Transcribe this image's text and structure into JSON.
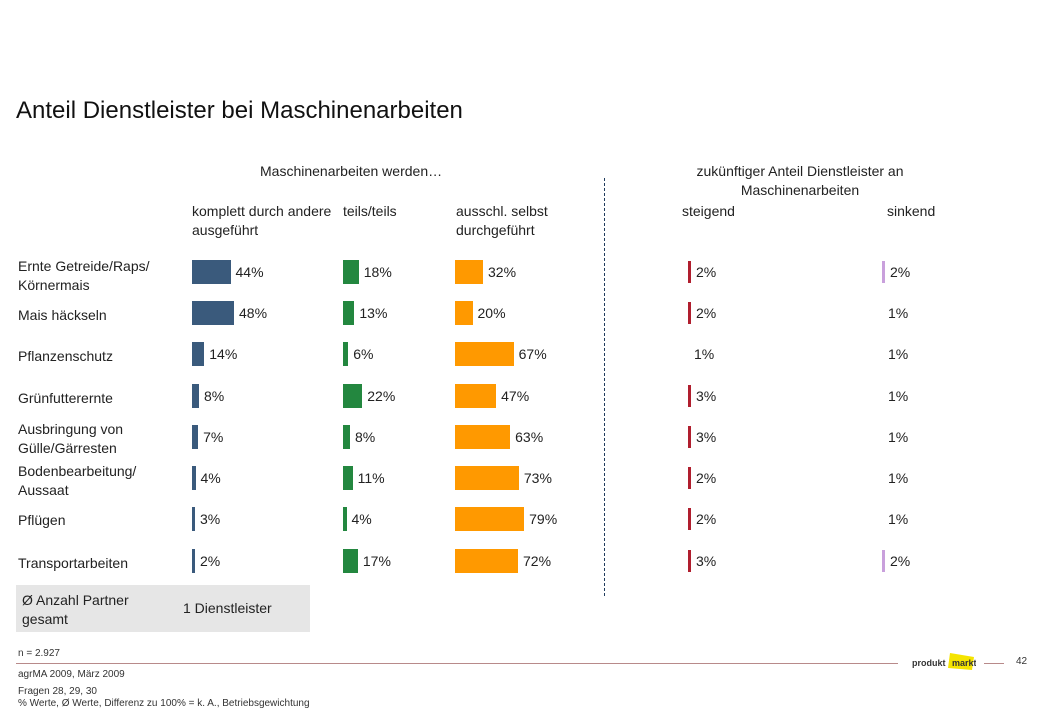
{
  "title": "Anteil Dienstleister bei Maschinenarbeiten",
  "group_left": "Maschinenarbeiten werden…",
  "group_right": "zukünftiger Anteil Dienstleister an Maschinenarbeiten",
  "columns": {
    "c1": "komplett durch andere ausgeführt",
    "c2": "teils/teils",
    "c3": "ausschl. selbst durchgeführt",
    "c4": "steigend",
    "c5": "sinkend"
  },
  "average": {
    "label": "Ø  Anzahl Partner gesamt",
    "value": "1 Dienstleister"
  },
  "footer": {
    "n": "n = 2.927",
    "source": "agrMA 2009, März 2009",
    "questions": "Fragen 28, 29, 30",
    "note": "% Werte, Ø Werte, Differenz zu 100% = k. A., Betriebsgewichtung",
    "page": "42",
    "logo_text": "produkt+markt"
  },
  "colors": {
    "c1": "#3a5a7c",
    "c2": "#23873f",
    "c3": "#ff9900",
    "steigend": "#b01e2e",
    "sinkend": "#c9a0dc"
  },
  "chart_data": {
    "type": "bar",
    "categories": [
      "Ernte Getreide/Raps/ Körnermais",
      "Mais häckseln",
      "Pflanzenschutz",
      "Grünfutterernte",
      "Ausbringung von Gülle/Gärresten",
      "Bodenbearbeitung/ Aussaat",
      "Pflügen",
      "Transportarbeiten"
    ],
    "series": [
      {
        "name": "komplett durch andere ausgeführt",
        "values": [
          44,
          48,
          14,
          8,
          7,
          4,
          3,
          2
        ],
        "labels": [
          "44%",
          "48%",
          "14%",
          "8%",
          "7%",
          "4%",
          "3%",
          "2%"
        ]
      },
      {
        "name": "teils/teils",
        "values": [
          18,
          13,
          6,
          22,
          8,
          11,
          4,
          17
        ],
        "labels": [
          "18%",
          "13%",
          "6%",
          "22%",
          "8%",
          "11%",
          "4%",
          "17%"
        ]
      },
      {
        "name": "ausschl. selbst durchgeführt",
        "values": [
          32,
          20,
          67,
          47,
          63,
          73,
          79,
          72
        ],
        "labels": [
          "32%",
          "20%",
          "67%",
          "47%",
          "63%",
          "73%",
          "79%",
          "72%"
        ]
      },
      {
        "name": "steigend",
        "values": [
          2,
          2,
          1,
          3,
          3,
          2,
          2,
          3
        ],
        "labels": [
          "2%",
          "2%",
          "1%",
          "3%",
          "3%",
          "2%",
          "2%",
          "3%"
        ]
      },
      {
        "name": "sinkend",
        "values": [
          2,
          1,
          1,
          1,
          1,
          1,
          1,
          2
        ],
        "labels": [
          "2%",
          "1%",
          "1%",
          "1%",
          "1%",
          "1%",
          "1%",
          "2%"
        ]
      }
    ]
  }
}
